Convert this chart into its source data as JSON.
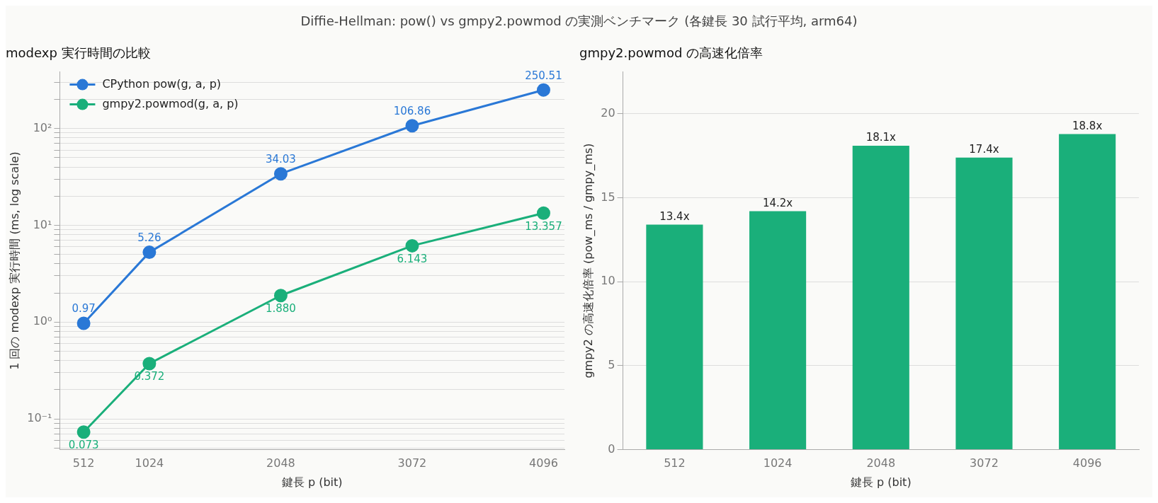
{
  "chart_data": [
    {
      "type": "line",
      "title": "modexp 実行時間の比較",
      "xlabel": "鍵長 p (bit)",
      "ylabel": "1 回の modexp 実行時間 (ms, log scale)",
      "annotations": [
        "Diffie-Hellman: pow() vs gmpy2.powmod の実測ベンチマーク (各鍵長 30 試行平均, arm64)"
      ],
      "x": [
        512,
        1024,
        2048,
        3072,
        4096
      ],
      "series": [
        {
          "name": "CPython pow(g, a, p)",
          "color": "#2a78d6",
          "values": [
            0.97,
            5.26,
            34.03,
            106.86,
            250.51
          ],
          "value_labels": [
            "0.97",
            "5.26",
            "34.03",
            "106.86",
            "250.51"
          ]
        },
        {
          "name": "gmpy2.powmod(g, a, p)",
          "color": "#1aaf7a",
          "values": [
            0.073,
            0.372,
            1.88,
            6.143,
            13.357
          ],
          "value_labels": [
            "0.073",
            "0.372",
            "1.880",
            "6.143",
            "13.357"
          ]
        }
      ],
      "log": "y",
      "xlim": [
        326,
        4259
      ],
      "xticks": [
        512,
        1024,
        2048,
        3072,
        4096
      ],
      "ylim": [
        0.048,
        385
      ],
      "yticks": [
        {
          "value": 0.05,
          "label": null
        },
        {
          "value": 0.06,
          "label": null
        },
        {
          "value": 0.07,
          "label": null
        },
        {
          "value": 0.08,
          "label": null
        },
        {
          "value": 0.09,
          "label": null
        },
        {
          "value": 0.1,
          "label": "10⁻¹"
        },
        {
          "value": 0.2,
          "label": null
        },
        {
          "value": 0.3,
          "label": null
        },
        {
          "value": 0.4,
          "label": null
        },
        {
          "value": 0.5,
          "label": null
        },
        {
          "value": 0.6,
          "label": null
        },
        {
          "value": 0.7,
          "label": null
        },
        {
          "value": 0.8,
          "label": null
        },
        {
          "value": 0.9,
          "label": null
        },
        {
          "value": 1,
          "label": "10⁰"
        },
        {
          "value": 2,
          "label": null
        },
        {
          "value": 3,
          "label": null
        },
        {
          "value": 4,
          "label": null
        },
        {
          "value": 5,
          "label": null
        },
        {
          "value": 6,
          "label": null
        },
        {
          "value": 7,
          "label": null
        },
        {
          "value": 8,
          "label": null
        },
        {
          "value": 9,
          "label": null
        },
        {
          "value": 10,
          "label": "10¹"
        },
        {
          "value": 20,
          "label": null
        },
        {
          "value": 30,
          "label": null
        },
        {
          "value": 40,
          "label": null
        },
        {
          "value": 50,
          "label": null
        },
        {
          "value": 60,
          "label": null
        },
        {
          "value": 70,
          "label": null
        },
        {
          "value": 80,
          "label": null
        },
        {
          "value": 90,
          "label": null
        },
        {
          "value": 100,
          "label": "10²"
        },
        {
          "value": 200,
          "label": null
        },
        {
          "value": 300,
          "label": null
        }
      ],
      "grid": "y",
      "legend": "top left",
      "marker": "circle",
      "line_style": "solid"
    },
    {
      "type": "bar",
      "title": "gmpy2.powmod の高速化倍率",
      "xlabel": "鍵長 p (bit)",
      "ylabel": "gmpy2 の高速化倍率 (pow_ms / gmpy_ms)",
      "categories": [
        "512",
        "1024",
        "2048",
        "3072",
        "4096"
      ],
      "values": [
        13.4,
        14.2,
        18.1,
        17.4,
        18.8
      ],
      "color": "#1aaf7a",
      "value_labels": [
        "13.4x",
        "14.2x",
        "18.1x",
        "17.4x",
        "18.8x"
      ],
      "ylim": [
        0,
        22.5
      ],
      "yticks": [
        0,
        5,
        10,
        15,
        20
      ],
      "grid": "y",
      "legend": false
    }
  ]
}
